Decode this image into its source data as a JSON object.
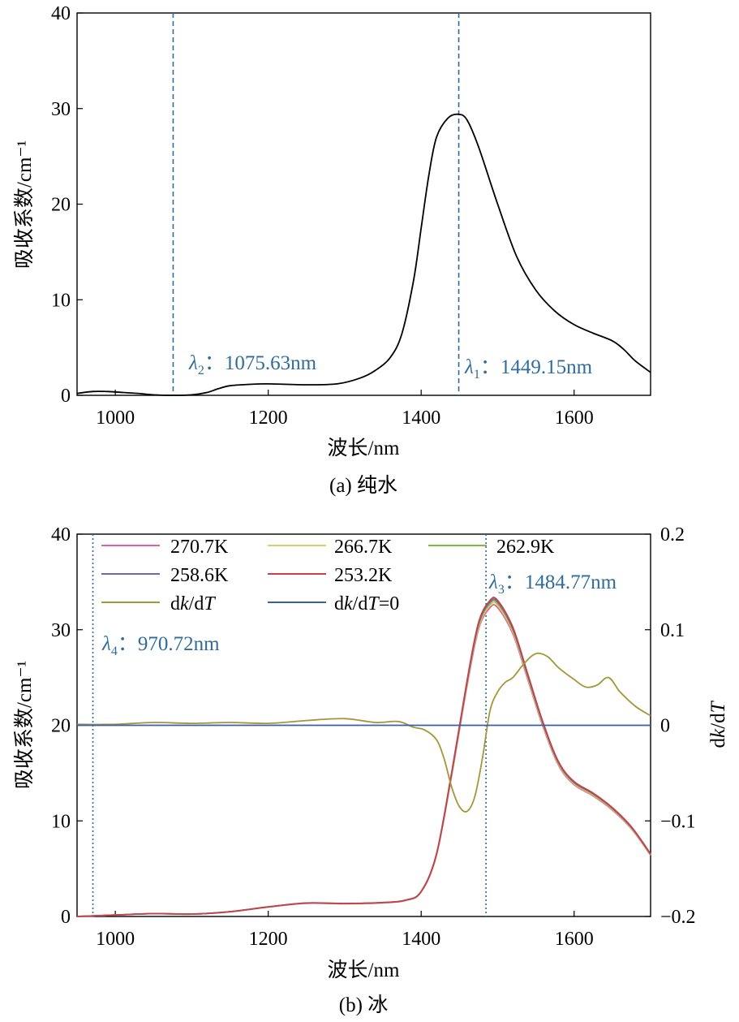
{
  "chart_data": [
    {
      "id": "a",
      "type": "line",
      "caption": "(a) 纯水",
      "xlabel": "波长/nm",
      "ylabel": "吸收系数/cm⁻¹",
      "xlim": [
        950,
        1700
      ],
      "ylim": [
        0,
        40
      ],
      "xticks": [
        1000,
        1200,
        1400,
        1600
      ],
      "yticks": [
        0,
        10,
        20,
        30,
        40
      ],
      "series": [
        {
          "name": "pure water",
          "color": "#000000",
          "x": [
            950,
            970,
            990,
            1010,
            1030,
            1050,
            1075,
            1100,
            1120,
            1135,
            1150,
            1175,
            1200,
            1250,
            1290,
            1320,
            1340,
            1360,
            1375,
            1390,
            1400,
            1410,
            1420,
            1435,
            1449,
            1460,
            1475,
            1500,
            1525,
            1550,
            1575,
            1600,
            1625,
            1650,
            1665,
            1680,
            1700
          ],
          "y": [
            0.2,
            0.4,
            0.4,
            0.3,
            0.2,
            0.05,
            0.0,
            0.05,
            0.3,
            0.7,
            1.0,
            1.15,
            1.2,
            1.1,
            1.2,
            1.8,
            2.6,
            4.0,
            6.5,
            12.0,
            17.5,
            23.0,
            27.0,
            29.0,
            29.4,
            28.8,
            26.0,
            20.0,
            14.5,
            11.0,
            8.8,
            7.4,
            6.5,
            5.7,
            4.8,
            3.6,
            2.4
          ]
        }
      ],
      "vlines": [
        {
          "x": 1075.63,
          "label_symbol": "λ",
          "label_sub": "2",
          "label_text": "：1075.63nm"
        },
        {
          "x": 1449.15,
          "label_symbol": "λ",
          "label_sub": "1",
          "label_text": "：1449.15nm"
        }
      ]
    },
    {
      "id": "b",
      "type": "line",
      "caption": "(b) 冰",
      "xlabel": "波长/nm",
      "ylabel": "吸收系数/cm⁻¹",
      "y2label": "dk/dT",
      "xlim": [
        950,
        1700
      ],
      "ylim": [
        0,
        40
      ],
      "y2lim": [
        -0.2,
        0.2
      ],
      "xticks": [
        1000,
        1200,
        1400,
        1600
      ],
      "yticks": [
        0,
        10,
        20,
        30,
        40
      ],
      "y2ticks": [
        -0.2,
        -0.1,
        0,
        0.1,
        0.2
      ],
      "y2ticklabels": [
        "−0.2",
        "−0.1",
        "0",
        "0.1",
        "0.2"
      ],
      "series": [
        {
          "name": "270.7K",
          "color": "#e0629a",
          "axis": "left",
          "shift": 0,
          "scale": 0.985,
          "x": [
            950,
            1000,
            1050,
            1100,
            1150,
            1200,
            1250,
            1300,
            1350,
            1380,
            1400,
            1420,
            1440,
            1460,
            1475,
            1490,
            1500,
            1520,
            1540,
            1560,
            1580,
            1600,
            1625,
            1650,
            1675,
            1700
          ],
          "y": [
            0.0,
            0.15,
            0.3,
            0.25,
            0.5,
            1.0,
            1.4,
            1.35,
            1.45,
            1.7,
            2.6,
            6.5,
            15.0,
            24.5,
            30.5,
            32.8,
            32.8,
            30.0,
            25.0,
            20.0,
            16.0,
            14.0,
            12.8,
            11.3,
            9.3,
            6.5
          ]
        },
        {
          "name": "266.7K",
          "color": "#d9cf6f",
          "axis": "left",
          "shift": 0,
          "scale": 0.992,
          "x": [
            950,
            1000,
            1050,
            1100,
            1150,
            1200,
            1250,
            1300,
            1350,
            1380,
            1400,
            1420,
            1440,
            1460,
            1475,
            1490,
            1500,
            1520,
            1540,
            1560,
            1580,
            1600,
            1625,
            1650,
            1675,
            1700
          ],
          "y": [
            0.0,
            0.15,
            0.3,
            0.25,
            0.5,
            1.0,
            1.4,
            1.35,
            1.45,
            1.7,
            2.6,
            6.5,
            15.0,
            24.5,
            30.5,
            32.8,
            32.8,
            30.0,
            25.0,
            20.0,
            16.0,
            14.0,
            12.8,
            11.3,
            9.3,
            6.5
          ]
        },
        {
          "name": "262.9K",
          "color": "#80b84a",
          "axis": "left",
          "shift": 0,
          "scale": 0.998,
          "x": [
            950,
            1000,
            1050,
            1100,
            1150,
            1200,
            1250,
            1300,
            1350,
            1380,
            1400,
            1420,
            1440,
            1460,
            1475,
            1490,
            1500,
            1520,
            1540,
            1560,
            1580,
            1600,
            1625,
            1650,
            1675,
            1700
          ],
          "y": [
            0.0,
            0.15,
            0.3,
            0.25,
            0.5,
            1.0,
            1.4,
            1.35,
            1.45,
            1.7,
            2.6,
            6.5,
            15.0,
            24.5,
            30.5,
            32.8,
            32.8,
            30.0,
            25.0,
            20.0,
            16.0,
            14.0,
            12.8,
            11.3,
            9.3,
            6.5
          ]
        },
        {
          "name": "258.6K",
          "color": "#6e6aa8",
          "axis": "left",
          "shift": 0,
          "scale": 1.003,
          "x": [
            950,
            1000,
            1050,
            1100,
            1150,
            1200,
            1250,
            1300,
            1350,
            1380,
            1400,
            1420,
            1440,
            1460,
            1475,
            1490,
            1500,
            1520,
            1540,
            1560,
            1580,
            1600,
            1625,
            1650,
            1675,
            1700
          ],
          "y": [
            0.0,
            0.15,
            0.3,
            0.25,
            0.5,
            1.0,
            1.4,
            1.35,
            1.45,
            1.7,
            2.6,
            6.5,
            15.0,
            24.5,
            30.5,
            32.8,
            32.8,
            30.0,
            25.0,
            20.0,
            16.0,
            14.0,
            12.8,
            11.3,
            9.3,
            6.5
          ]
        },
        {
          "name": "253.2K",
          "color": "#c7414a",
          "axis": "left",
          "shift": 0,
          "scale": 1.008,
          "x": [
            950,
            1000,
            1050,
            1100,
            1150,
            1200,
            1250,
            1300,
            1350,
            1380,
            1400,
            1420,
            1440,
            1460,
            1475,
            1490,
            1500,
            1520,
            1540,
            1560,
            1580,
            1600,
            1625,
            1650,
            1675,
            1700
          ],
          "y": [
            0.0,
            0.15,
            0.3,
            0.25,
            0.5,
            1.0,
            1.4,
            1.35,
            1.45,
            1.7,
            2.6,
            6.5,
            15.0,
            24.5,
            30.5,
            32.8,
            32.8,
            30.0,
            25.0,
            20.0,
            16.0,
            14.0,
            12.8,
            11.3,
            9.3,
            6.5
          ]
        },
        {
          "name": "dk/dT",
          "color": "#a3973a",
          "axis": "right",
          "x": [
            950,
            1000,
            1050,
            1100,
            1150,
            1200,
            1250,
            1300,
            1340,
            1370,
            1390,
            1405,
            1420,
            1430,
            1440,
            1450,
            1460,
            1470,
            1480,
            1490,
            1500,
            1510,
            1520,
            1535,
            1550,
            1565,
            1580,
            1600,
            1615,
            1630,
            1645,
            1660,
            1680,
            1700
          ],
          "y": [
            0.001,
            0.001,
            0.003,
            0.002,
            0.003,
            0.002,
            0.005,
            0.007,
            0.003,
            0.004,
            -0.002,
            -0.005,
            -0.015,
            -0.035,
            -0.065,
            -0.085,
            -0.09,
            -0.075,
            -0.035,
            0.015,
            0.035,
            0.045,
            0.05,
            0.065,
            0.075,
            0.072,
            0.06,
            0.048,
            0.04,
            0.042,
            0.05,
            0.035,
            0.02,
            0.01
          ]
        },
        {
          "name": "dk/dT=0",
          "color": "#3b5ea8",
          "axis": "right",
          "x": [
            950,
            1700
          ],
          "y": [
            0,
            0
          ]
        }
      ],
      "legend": [
        {
          "label": "270.7K",
          "color": "#e0629a"
        },
        {
          "label": "266.7K",
          "color": "#d9cf6f"
        },
        {
          "label": "262.9K",
          "color": "#80b84a"
        },
        {
          "label": "258.6K",
          "color": "#6e6aa8"
        },
        {
          "label": "253.2K",
          "color": "#c7414a"
        },
        {
          "label": "dk/dT",
          "color": "#a3973a"
        },
        {
          "label": "dk/dT=0",
          "color": "#3b5ea8"
        }
      ],
      "vlines": [
        {
          "x": 970.72,
          "label_symbol": "λ",
          "label_sub": "4",
          "label_text": "：970.72nm"
        },
        {
          "x": 1484.77,
          "label_symbol": "λ",
          "label_sub": "3",
          "label_text": "：1484.77nm"
        }
      ]
    }
  ]
}
